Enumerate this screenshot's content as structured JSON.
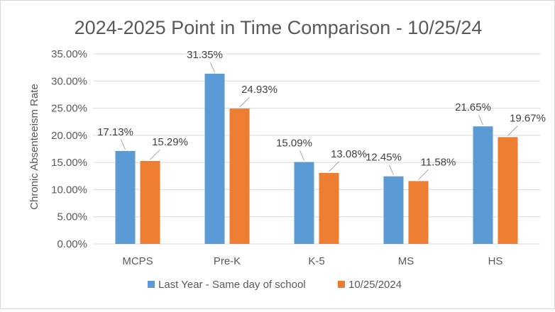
{
  "chart_data": {
    "type": "bar",
    "title": "2024-2025 Point in Time Comparison - 10/25/24",
    "xlabel": "",
    "ylabel": "Chronic Absenteeism Rate",
    "categories": [
      "MCPS",
      "Pre-K",
      "K-5",
      "MS",
      "HS"
    ],
    "series": [
      {
        "name": "Last Year - Same day of school",
        "color": "#5b9bd5",
        "values": [
          17.13,
          31.35,
          15.09,
          12.45,
          21.65
        ],
        "labels": [
          "17.13%",
          "31.35%",
          "15.09%",
          "12.45%",
          "21.65%"
        ]
      },
      {
        "name": "10/25/2024",
        "color": "#ed7d31",
        "values": [
          15.29,
          24.93,
          13.08,
          11.58,
          19.67
        ],
        "labels": [
          "15.29%",
          "24.93%",
          "13.08%",
          "11.58%",
          "19.67%"
        ]
      }
    ],
    "ylim": [
      0,
      35
    ],
    "yticks": [
      0,
      5,
      10,
      15,
      20,
      25,
      30,
      35
    ],
    "ytick_labels": [
      "0.00%",
      "5.00%",
      "10.00%",
      "15.00%",
      "20.00%",
      "25.00%",
      "30.00%",
      "35.00%"
    ],
    "grid": true,
    "legend_position": "bottom"
  }
}
